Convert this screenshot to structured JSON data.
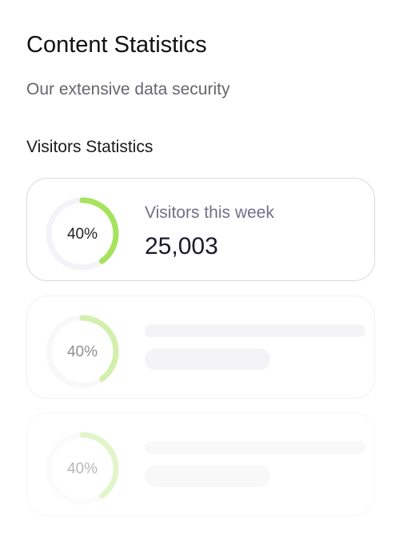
{
  "header": {
    "title": "Content Statistics",
    "subtitle": "Our extensive data security"
  },
  "section": {
    "title": "Visitors Statistics"
  },
  "cards": [
    {
      "percent": 40,
      "percent_label": "40%",
      "title": "Visitors this week",
      "value": "25,003"
    },
    {
      "percent": 40,
      "percent_label": "40%"
    },
    {
      "percent": 40,
      "percent_label": "40%"
    }
  ]
}
